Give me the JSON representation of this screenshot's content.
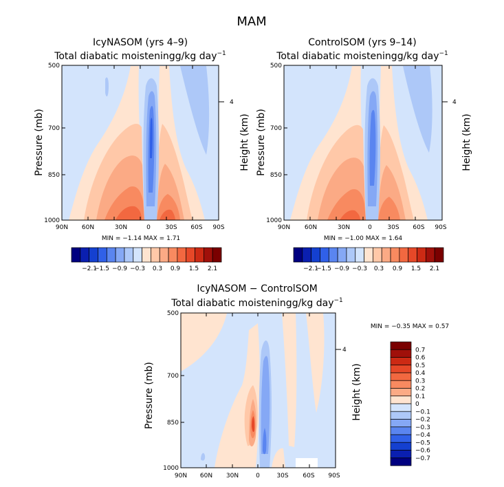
{
  "page": {
    "title": "MAM"
  },
  "colors": {
    "neg": [
      "#000080",
      "#0a1fb0",
      "#1440d0",
      "#3060e8",
      "#5a85f0",
      "#85a8f5",
      "#adc8f8",
      "#d3e4fc"
    ],
    "pos": [
      "#ffe4d0",
      "#ffc8a8",
      "#fbaa85",
      "#f88a60",
      "#f26840",
      "#e64828",
      "#cc2a14",
      "#a0100a",
      "#7a0000"
    ]
  },
  "chart_data": [
    {
      "type": "heatmap",
      "title": "IcyNASOM (yrs 4–9)",
      "subtitle_main": "Total diabatic moistening",
      "subtitle_unit": "g/kg day",
      "subtitle_exp": "−1",
      "ylabel": "Pressure (mb)",
      "y2label": "Height (km)",
      "xticks": [
        "90N",
        "60N",
        "30N",
        "0",
        "30S",
        "60S",
        "90S"
      ],
      "yticks": [
        "500",
        "700",
        "850",
        "1000"
      ],
      "y2ticks": [
        "4"
      ],
      "min_label": "MIN =",
      "min_value": "−1.14",
      "max_label": "MAX =",
      "max_value": "1.71",
      "colorbar_labels": [
        "−2.1",
        "−1.5",
        "−0.9",
        "−0.3",
        "0.3",
        "0.9",
        "1.5",
        "2.1"
      ]
    },
    {
      "type": "heatmap",
      "title": "ControlSOM (yrs 9–14)",
      "subtitle_main": "Total diabatic moistening",
      "subtitle_unit": "g/kg day",
      "subtitle_exp": "−1",
      "ylabel": "Pressure (mb)",
      "y2label": "Height (km)",
      "xticks": [
        "90N",
        "60N",
        "30N",
        "0",
        "30S",
        "60S",
        "90S"
      ],
      "yticks": [
        "500",
        "700",
        "850",
        "1000"
      ],
      "y2ticks": [
        "4"
      ],
      "min_label": "MIN =",
      "min_value": "−1.00",
      "max_label": "MAX =",
      "max_value": "1.64",
      "colorbar_labels": [
        "−2.1",
        "−1.5",
        "−0.9",
        "−0.3",
        "0.3",
        "0.9",
        "1.5",
        "2.1"
      ]
    },
    {
      "type": "heatmap",
      "title": "IcyNASOM − ControlSOM",
      "subtitle_main": "Total diabatic moistening",
      "subtitle_unit": "g/kg day",
      "subtitle_exp": "−1",
      "ylabel": "Pressure (mb)",
      "y2label": "Height (km)",
      "xticks": [
        "90N",
        "60N",
        "30N",
        "0",
        "30S",
        "60S",
        "90S"
      ],
      "yticks": [
        "500",
        "700",
        "850",
        "1000"
      ],
      "y2ticks": [
        "4"
      ],
      "min_label": "MIN =",
      "min_value": "−0.35",
      "max_label": "MAX =",
      "max_value": "0.57",
      "colorbar_labels": [
        "0.7",
        "0.6",
        "0.5",
        "0.4",
        "0.3",
        "0.2",
        "0.1",
        "0",
        "−0.1",
        "−0.2",
        "−0.3",
        "−0.4",
        "−0.5",
        "−0.6",
        "−0.7"
      ]
    }
  ]
}
